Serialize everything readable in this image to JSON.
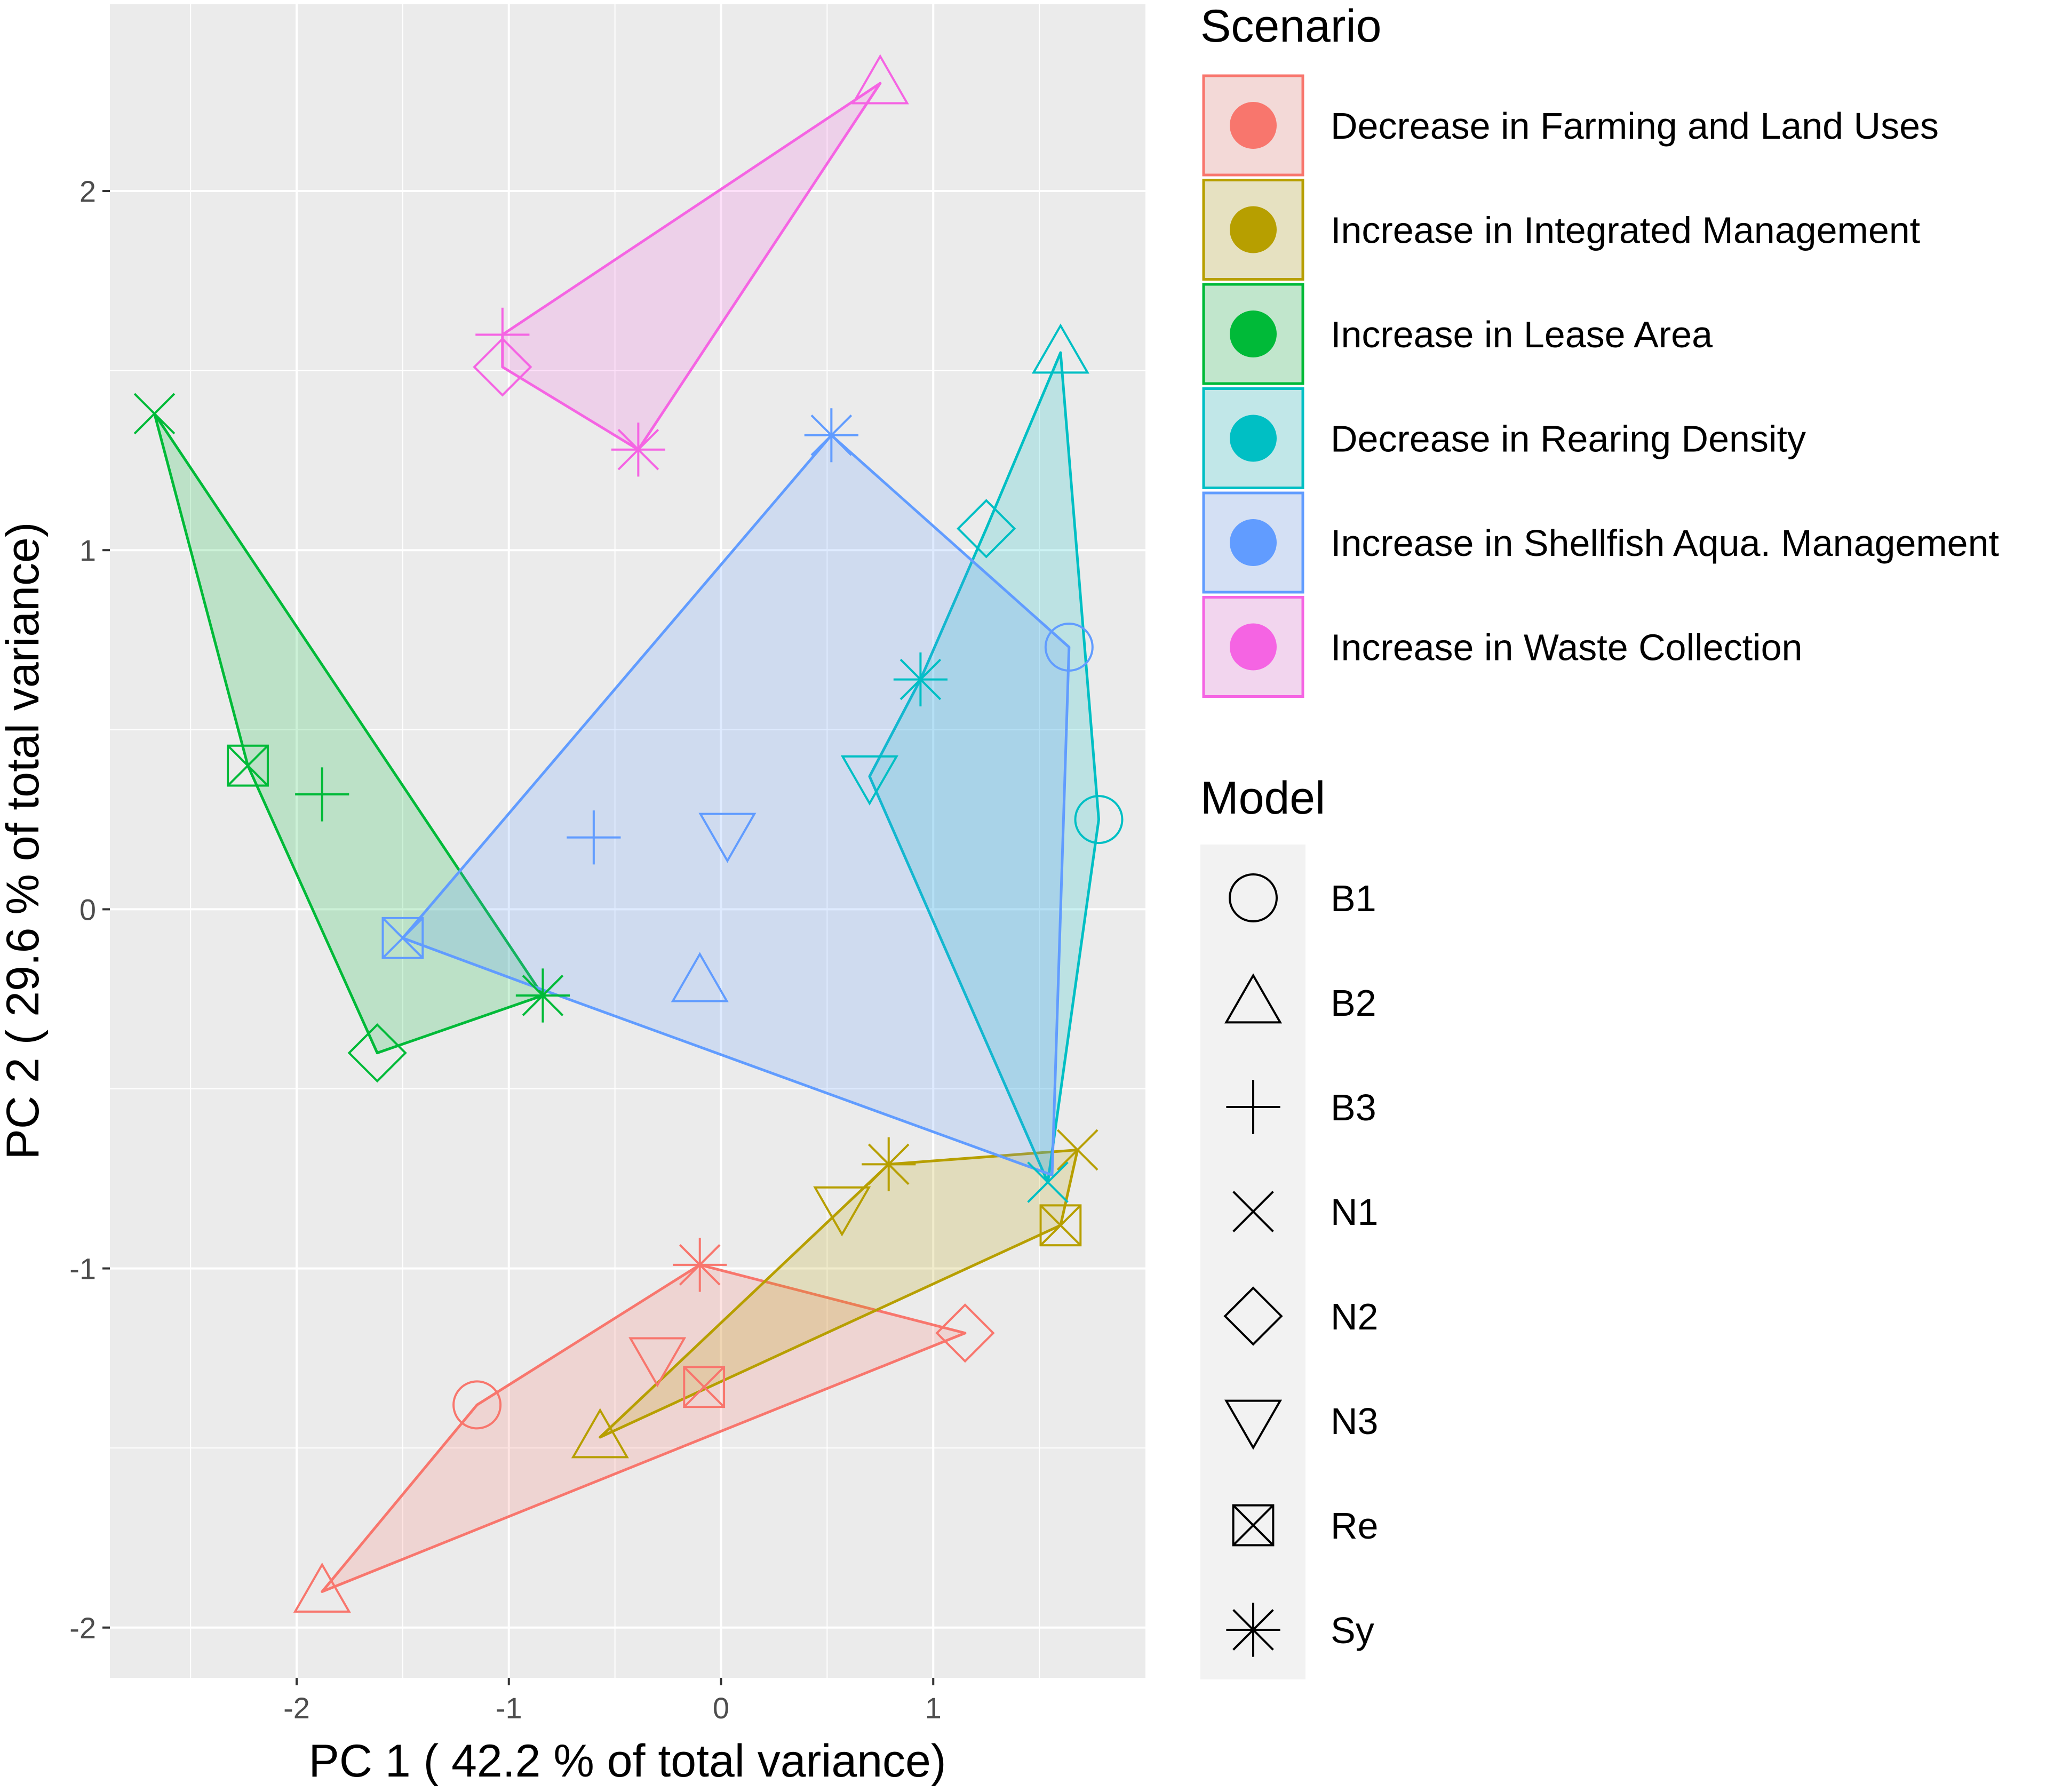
{
  "chart_data": {
    "type": "scatter",
    "title": "",
    "xlabel": "PC 1 ( 42.2 % of total variance)",
    "ylabel": "PC 2 ( 29.6 % of total variance)",
    "xlim": [
      -2.88,
      2.0
    ],
    "ylim": [
      -2.14,
      2.52
    ],
    "x_ticks": [
      -2,
      -1,
      0,
      1
    ],
    "y_ticks": [
      -2,
      -1,
      0,
      1,
      2
    ],
    "x_tick_labels": [
      "-2",
      "-1",
      "0",
      "1"
    ],
    "y_tick_labels": [
      "-2",
      "-1",
      "0",
      "1",
      "2"
    ],
    "grid": true,
    "legend_position": "right",
    "scenario_legend_title": "Scenario",
    "model_legend_title": "Model",
    "models": [
      {
        "key": "B1",
        "label": "B1",
        "shape": "circle"
      },
      {
        "key": "B2",
        "label": "B2",
        "shape": "triangle-up"
      },
      {
        "key": "B3",
        "label": "B3",
        "shape": "plus"
      },
      {
        "key": "N1",
        "label": "N1",
        "shape": "cross"
      },
      {
        "key": "N2",
        "label": "N2",
        "shape": "diamond"
      },
      {
        "key": "N3",
        "label": "N3",
        "shape": "triangle-down"
      },
      {
        "key": "Re",
        "label": "Re",
        "shape": "boxed-x"
      },
      {
        "key": "Sy",
        "label": "Sy",
        "shape": "asterisk"
      }
    ],
    "series": [
      {
        "name": "Decrease in Farming and Land Uses",
        "color": "#F8766D",
        "points": [
          {
            "model": "B1",
            "x": -1.15,
            "y": -1.38
          },
          {
            "model": "B2",
            "x": -1.88,
            "y": -1.9
          },
          {
            "model": "N2",
            "x": 1.15,
            "y": -1.18
          },
          {
            "model": "N3",
            "x": -0.3,
            "y": -1.25
          },
          {
            "model": "Re",
            "x": -0.08,
            "y": -1.33
          },
          {
            "model": "Sy",
            "x": -0.1,
            "y": -0.99
          }
        ],
        "hull": [
          "B2",
          "B1",
          "Sy",
          "N2"
        ]
      },
      {
        "name": "Increase in Integrated Management",
        "color": "#B79F00",
        "points": [
          {
            "model": "B2",
            "x": -0.57,
            "y": -1.47
          },
          {
            "model": "N1",
            "x": 1.68,
            "y": -0.67
          },
          {
            "model": "N3",
            "x": 0.57,
            "y": -0.83
          },
          {
            "model": "Re",
            "x": 1.6,
            "y": -0.88
          },
          {
            "model": "Sy",
            "x": 0.79,
            "y": -0.71
          }
        ],
        "hull": [
          "B2",
          "Sy",
          "N1",
          "Re"
        ]
      },
      {
        "name": "Increase in Lease Area",
        "color": "#00BA38",
        "points": [
          {
            "model": "B3",
            "x": -1.88,
            "y": 0.32
          },
          {
            "model": "N1",
            "x": -2.67,
            "y": 1.38
          },
          {
            "model": "N2",
            "x": -1.62,
            "y": -0.4
          },
          {
            "model": "Re",
            "x": -2.23,
            "y": 0.4
          },
          {
            "model": "Sy",
            "x": -0.84,
            "y": -0.24
          }
        ],
        "hull": [
          "N1",
          "Re",
          "N2",
          "Sy"
        ]
      },
      {
        "name": "Decrease in Rearing Density",
        "color": "#00BFC4",
        "points": [
          {
            "model": "B1",
            "x": 1.78,
            "y": 0.25
          },
          {
            "model": "B2",
            "x": 1.6,
            "y": 1.55
          },
          {
            "model": "N1",
            "x": 1.54,
            "y": -0.76
          },
          {
            "model": "N2",
            "x": 1.25,
            "y": 1.06
          },
          {
            "model": "N3",
            "x": 0.7,
            "y": 0.37
          },
          {
            "model": "Sy",
            "x": 0.94,
            "y": 0.64
          }
        ],
        "hull": [
          "B2",
          "B1",
          "N1",
          "N3",
          "Sy",
          "N2"
        ]
      },
      {
        "name": "Increase in Shellfish Aqua. Management",
        "color": "#619CFF",
        "points": [
          {
            "model": "B1",
            "x": 1.64,
            "y": 0.73
          },
          {
            "model": "B2",
            "x": -0.1,
            "y": -0.2
          },
          {
            "model": "B3",
            "x": -0.6,
            "y": 0.2
          },
          {
            "model": "N3",
            "x": 0.03,
            "y": 0.21
          },
          {
            "model": "Re",
            "x": -1.5,
            "y": -0.08
          },
          {
            "model": "Sy",
            "x": 0.52,
            "y": 1.32
          }
        ],
        "hull": [
          "Sy",
          "B1",
          "N1*",
          "Sy*",
          "Re"
        ],
        "hull_extra": {
          "N1*": [
            1.56,
            -0.74
          ],
          "Sy*": [
            -0.86,
            -0.22
          ]
        }
      },
      {
        "name": "Increase in Waste Collection",
        "color": "#F564E3",
        "points": [
          {
            "model": "B2",
            "x": 0.75,
            "y": 2.3
          },
          {
            "model": "B3",
            "x": -1.03,
            "y": 1.6
          },
          {
            "model": "N2",
            "x": -1.03,
            "y": 1.51
          },
          {
            "model": "Sy",
            "x": -0.39,
            "y": 1.28
          }
        ],
        "hull": [
          "B3",
          "B2",
          "Sy",
          "N2"
        ]
      }
    ]
  }
}
